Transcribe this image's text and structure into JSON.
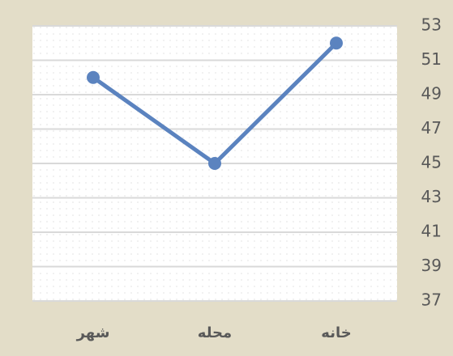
{
  "chart_data": {
    "type": "line",
    "categories": [
      "شهر",
      "محله",
      "خانه"
    ],
    "values": [
      50,
      45,
      52
    ],
    "color": "#5b83bf",
    "ylim": [
      37,
      53
    ],
    "yticks": [
      37,
      39,
      41,
      43,
      45,
      47,
      49,
      51,
      53
    ],
    "grid": true
  }
}
